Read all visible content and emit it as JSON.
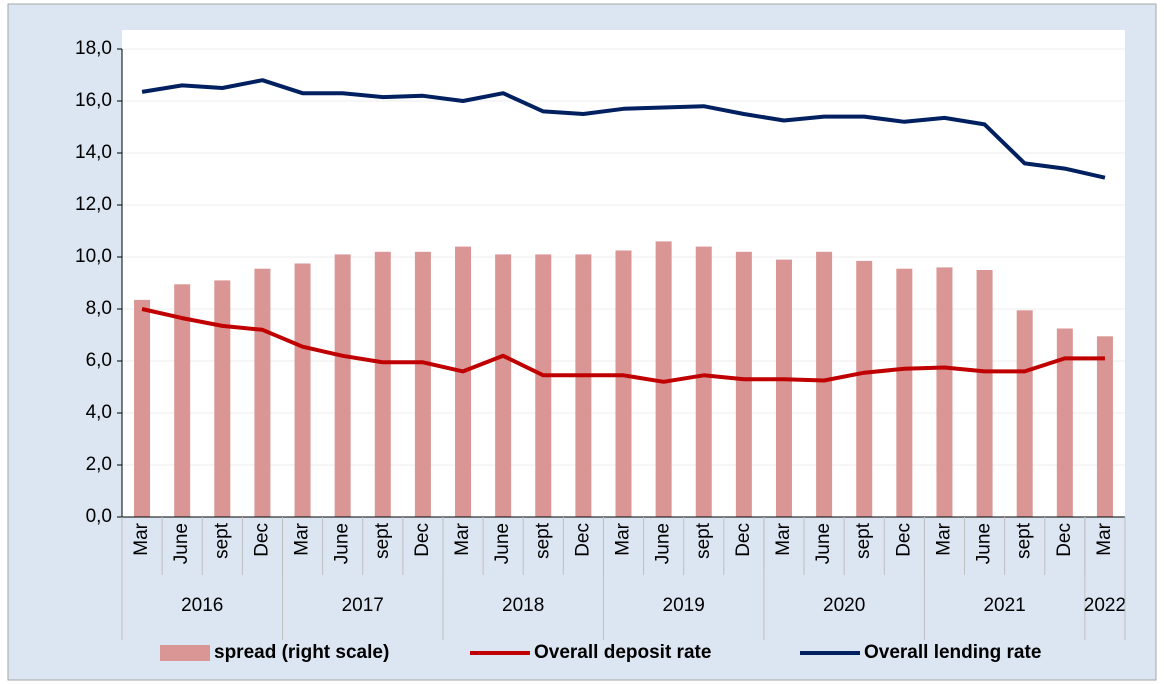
{
  "chart_data": {
    "type": "bar_line",
    "categories": [
      "Mar",
      "June",
      "sept",
      "Dec",
      "Mar",
      "June",
      "sept",
      "Dec",
      "Mar",
      "June",
      "sept",
      "Dec",
      "Mar",
      "June",
      "sept",
      "Dec",
      "Mar",
      "June",
      "sept",
      "Dec",
      "Mar",
      "June",
      "sept",
      "Dec",
      "Mar"
    ],
    "x_groups": [
      {
        "label": "2016",
        "size": 4
      },
      {
        "label": "2017",
        "size": 4
      },
      {
        "label": "2018",
        "size": 4
      },
      {
        "label": "2019",
        "size": 4
      },
      {
        "label": "2020",
        "size": 4
      },
      {
        "label": "2021",
        "size": 4
      },
      {
        "label": "2022",
        "size": 1
      }
    ],
    "series": [
      {
        "name": "spread (right scale)",
        "type": "bar",
        "color": "#d99694",
        "values": [
          8.35,
          8.95,
          9.1,
          9.55,
          9.75,
          10.1,
          10.2,
          10.2,
          10.4,
          10.1,
          10.1,
          10.1,
          10.25,
          10.6,
          10.4,
          10.2,
          9.9,
          10.2,
          9.85,
          9.55,
          9.6,
          9.5,
          7.95,
          7.25,
          6.95
        ]
      },
      {
        "name": "Overall deposit rate",
        "type": "line",
        "color": "#c00000",
        "values": [
          8.0,
          7.65,
          7.35,
          7.2,
          6.55,
          6.2,
          5.95,
          5.95,
          5.6,
          6.2,
          5.45,
          5.45,
          5.45,
          5.2,
          5.45,
          5.3,
          5.3,
          5.25,
          5.55,
          5.7,
          5.75,
          5.6,
          5.6,
          6.1,
          6.1
        ]
      },
      {
        "name": "Overall lending rate",
        "type": "line",
        "color": "#002060",
        "values": [
          16.35,
          16.6,
          16.5,
          16.8,
          16.3,
          16.3,
          16.15,
          16.2,
          16.0,
          16.3,
          15.6,
          15.5,
          15.7,
          15.75,
          15.8,
          15.5,
          15.25,
          15.4,
          15.4,
          15.2,
          15.35,
          15.1,
          13.6,
          13.4,
          13.05
        ]
      }
    ],
    "ylim": [
      0,
      18
    ],
    "yticks": [
      {
        "value": 0,
        "label": "0,0"
      },
      {
        "value": 2,
        "label": "2,0"
      },
      {
        "value": 4,
        "label": "4,0"
      },
      {
        "value": 6,
        "label": "6,0"
      },
      {
        "value": 8,
        "label": "8,0"
      },
      {
        "value": 10,
        "label": "10,0"
      },
      {
        "value": 12,
        "label": "12,0"
      },
      {
        "value": 14,
        "label": "14,0"
      },
      {
        "value": 16,
        "label": "16,0"
      },
      {
        "value": 18,
        "label": "18,0"
      }
    ],
    "grid": true,
    "legend": "bottom"
  }
}
